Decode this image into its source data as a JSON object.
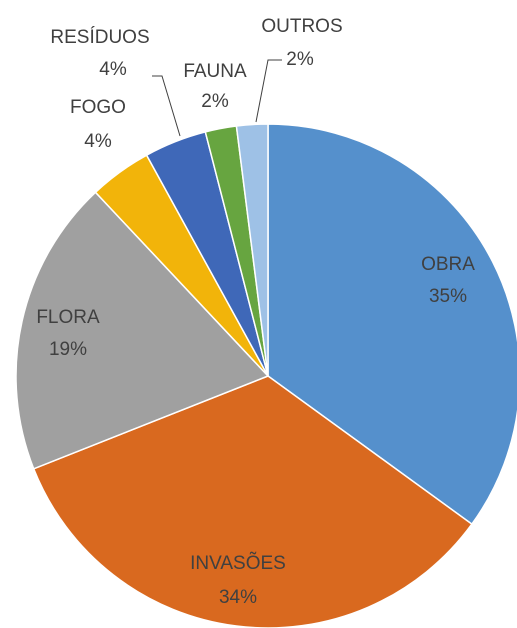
{
  "chart_data": {
    "type": "pie",
    "categories": [
      "OBRA",
      "INVASÕES",
      "FLORA",
      "FOGO",
      "RESÍDUOS",
      "FAUNA",
      "OUTROS"
    ],
    "values": [
      35,
      34,
      19,
      4,
      4,
      2,
      2
    ],
    "value_labels": [
      "35%",
      "34%",
      "19%",
      "4%",
      "4%",
      "2%",
      "2%"
    ],
    "colors": [
      "#5590cc",
      "#d9691f",
      "#a0a0a0",
      "#f2b40a",
      "#3f68b8",
      "#67a540",
      "#9ec1e6"
    ]
  }
}
